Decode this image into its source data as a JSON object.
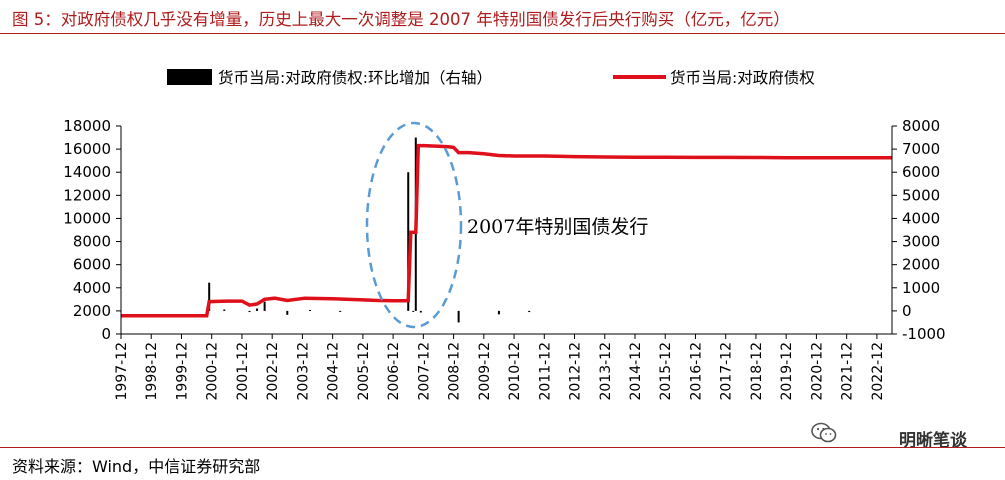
{
  "figure": {
    "title": "图 5：对政府债权几乎没有增量，历史上最大一次调整是 2007 年特别国债发行后央行购买（亿元，亿元）",
    "source": "资料来源：Wind，中信证券研究部",
    "watermark": "明晰笔谈",
    "annotation": "2007年特别国债发行"
  },
  "colors": {
    "line": "#E0101B",
    "bar": "#000000",
    "title": "#B01C1C",
    "ellipse": "#5B9BD5"
  },
  "chart_data": {
    "type": "bar+line",
    "x_tick_labels": [
      "1997-12",
      "1998-12",
      "1999-12",
      "2000-12",
      "2001-12",
      "2002-12",
      "2003-12",
      "2004-12",
      "2005-12",
      "2006-12",
      "2007-12",
      "2008-12",
      "2009-12",
      "2010-12",
      "2011-12",
      "2012-12",
      "2013-12",
      "2014-12",
      "2015-12",
      "2016-12",
      "2017-12",
      "2018-12",
      "2019-12",
      "2020-12",
      "2021-12",
      "2022-12"
    ],
    "y_left": {
      "min": 0,
      "max": 18000,
      "ticks": [
        0,
        2000,
        4000,
        6000,
        8000,
        10000,
        12000,
        14000,
        16000,
        18000
      ]
    },
    "y_right": {
      "min": -1000,
      "max": 8000,
      "ticks": [
        -1000,
        0,
        1000,
        2000,
        3000,
        4000,
        5000,
        6000,
        7000,
        8000
      ]
    },
    "legend": {
      "position": "top",
      "entries": [
        "货币当局:对政府债权:环比增加（右轴）",
        "货币当局:对政府债权"
      ]
    },
    "series": [
      {
        "name": "货币当局:对政府债权",
        "type": "line",
        "axis": "left",
        "x": [
          "1997-12",
          "1998-12",
          "1999-12",
          "2000-10",
          "2000-11",
          "2001-06",
          "2001-12",
          "2002-03",
          "2002-06",
          "2002-09",
          "2003-01",
          "2003-06",
          "2004-01",
          "2004-12",
          "2005-12",
          "2006-06",
          "2006-12",
          "2007-06",
          "2007-07",
          "2007-08",
          "2007-09",
          "2007-10",
          "2007-12",
          "2008-06",
          "2008-10",
          "2008-12",
          "2009-02",
          "2009-06",
          "2009-12",
          "2010-06",
          "2010-12",
          "2011-12",
          "2012-12",
          "2013-12",
          "2014-12",
          "2015-12",
          "2016-12",
          "2017-12",
          "2018-12",
          "2019-12",
          "2020-12",
          "2021-12",
          "2022-12",
          "2023-06"
        ],
        "values": [
          1583,
          1583,
          1583,
          1583,
          2800,
          2850,
          2850,
          2500,
          2600,
          3000,
          3100,
          2900,
          3100,
          3050,
          2950,
          2900,
          2880,
          2880,
          8800,
          8800,
          8800,
          16300,
          16300,
          16250,
          16200,
          16150,
          15700,
          15700,
          15600,
          15450,
          15400,
          15400,
          15350,
          15320,
          15300,
          15300,
          15280,
          15280,
          15270,
          15260,
          15250,
          15250,
          15250,
          15250
        ]
      },
      {
        "name": "货币当局:对政府债权:环比增加（右轴）",
        "type": "bar",
        "axis": "right",
        "x": [
          "2000-11",
          "2001-05",
          "2002-03",
          "2002-06",
          "2002-09",
          "2003-06",
          "2004-03",
          "2005-03",
          "2007-06",
          "2007-08",
          "2007-09",
          "2007-11",
          "2009-02",
          "2010-06",
          "2011-06"
        ],
        "values": [
          1220,
          60,
          -50,
          100,
          400,
          -170,
          40,
          -40,
          6000,
          -30,
          7500,
          -70,
          -500,
          -150,
          -50
        ]
      }
    ]
  }
}
